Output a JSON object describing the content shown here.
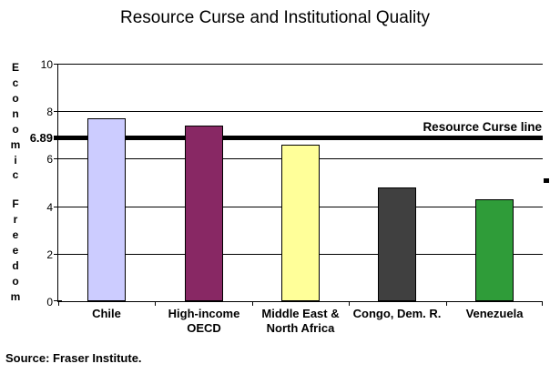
{
  "chart_data": {
    "type": "bar",
    "title": "Resource Curse and Institutional Quality",
    "ylabel": "Economic Freedom",
    "xlabel": "",
    "categories": [
      "Chile",
      "High-income OECD",
      "Middle East & North Africa",
      "Congo, Dem. R.",
      "Venezuela"
    ],
    "values": [
      7.7,
      7.4,
      6.6,
      4.8,
      4.3
    ],
    "bar_colors": [
      "#ccccff",
      "#882864",
      "#ffff99",
      "#404040",
      "#2f9c39"
    ],
    "ylim": [
      0,
      10
    ],
    "y_ticks": [
      0,
      2,
      4,
      6,
      8,
      10
    ],
    "grid": true,
    "legend": "none",
    "reference_line": {
      "value": 6.89,
      "value_label": "6.89",
      "label": "Resource Curse line",
      "color": "#000000"
    },
    "source": "Source: Fraser Institute."
  }
}
